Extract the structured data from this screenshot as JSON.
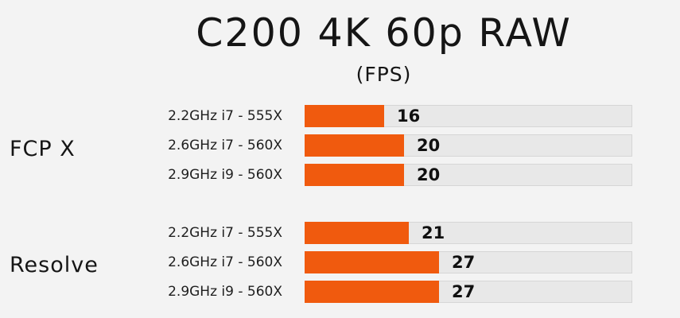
{
  "chart_data": {
    "type": "bar",
    "orientation": "horizontal",
    "title": "C200 4K 60p RAW",
    "subtitle": "(FPS)",
    "xlim": [
      0,
      66
    ],
    "groups": [
      {
        "name": "FCP X",
        "categories": [
          "2.2GHz i7 - 555X",
          "2.6GHz i7 - 560X",
          "2.9GHz i9 - 560X"
        ],
        "values": [
          16,
          20,
          20
        ]
      },
      {
        "name": "Resolve",
        "categories": [
          "2.2GHz i7 - 555X",
          "2.6GHz i7 - 560X",
          "2.9GHz i9 - 560X"
        ],
        "values": [
          21,
          27,
          27
        ]
      }
    ],
    "bar_color": "#f05a0e",
    "track_color": "#e8e8e8",
    "grid": false
  }
}
